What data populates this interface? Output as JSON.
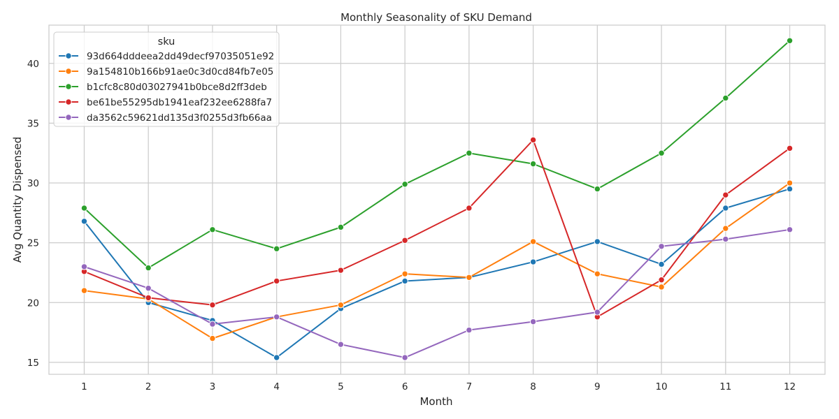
{
  "chart_data": {
    "type": "line",
    "title": "Monthly Seasonality of SKU Demand",
    "xlabel": "Month",
    "ylabel": "Avg Quantity Dispensed",
    "x": [
      1,
      2,
      3,
      4,
      5,
      6,
      7,
      8,
      9,
      10,
      11,
      12
    ],
    "x_tick_labels": [
      "1",
      "2",
      "3",
      "4",
      "5",
      "6",
      "7",
      "8",
      "9",
      "10",
      "11",
      "12"
    ],
    "y_ticks": [
      15,
      20,
      25,
      30,
      35,
      40
    ],
    "y_tick_labels": [
      "15",
      "20",
      "25",
      "30",
      "35",
      "40"
    ],
    "xlim": [
      0.45,
      12.55
    ],
    "ylim": [
      14.0,
      43.2
    ],
    "grid": true,
    "legend_title": "sku",
    "legend_position": "top-left",
    "series": [
      {
        "name": "93d664dddeea2dd49decf97035051e92",
        "color": "#1f77b4",
        "values": [
          26.8,
          20.0,
          18.5,
          15.4,
          19.5,
          21.8,
          22.1,
          23.4,
          25.1,
          23.2,
          27.9,
          29.5
        ]
      },
      {
        "name": "9a154810b166b91ae0c3d0cd84fb7e05",
        "color": "#ff7f0e",
        "values": [
          21.0,
          20.3,
          17.0,
          18.8,
          19.8,
          22.4,
          22.1,
          25.1,
          22.4,
          21.3,
          26.2,
          30.0
        ]
      },
      {
        "name": "b1cfc8c80d03027941b0bce8d2ff3deb",
        "color": "#2ca02c",
        "values": [
          27.9,
          22.9,
          26.1,
          24.5,
          26.3,
          29.9,
          32.5,
          31.6,
          29.5,
          32.5,
          37.1,
          41.9
        ]
      },
      {
        "name": "be61be55295db1941eaf232ee6288fa7",
        "color": "#d62728",
        "values": [
          22.6,
          20.4,
          19.8,
          21.8,
          22.7,
          25.2,
          27.9,
          33.6,
          18.8,
          21.9,
          29.0,
          32.9
        ]
      },
      {
        "name": "da3562c59621dd135d3f0255d3fb66aa",
        "color": "#9467bd",
        "values": [
          23.0,
          21.2,
          18.2,
          18.8,
          16.5,
          15.4,
          17.7,
          18.4,
          19.2,
          24.7,
          25.3,
          26.1
        ]
      }
    ]
  }
}
